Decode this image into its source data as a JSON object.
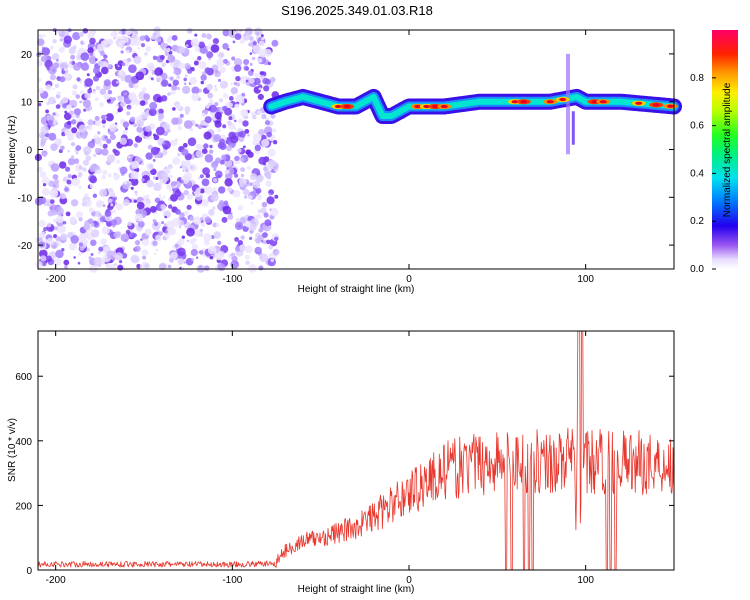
{
  "title": "S196.2025.349.01.03.R18",
  "chart_data": [
    {
      "type": "heatmap",
      "title": "S196.2025.349.01.03.R18",
      "xlabel": "Height of straight line (km)",
      "ylabel": "Frequency (Hz)",
      "xlim": [
        -210,
        150
      ],
      "ylim": [
        -25,
        25
      ],
      "xticks": [
        -200,
        -100,
        0,
        100
      ],
      "yticks": [
        -20,
        -10,
        0,
        10,
        20
      ],
      "noise_region_x": [
        -210,
        -75
      ],
      "colorbar": {
        "label": "Normalized spectral amplitude",
        "range": [
          0,
          1
        ],
        "ticks": [
          0,
          0.2,
          0.4,
          0.6,
          0.8
        ]
      },
      "ridge": {
        "x": [
          -78,
          -70,
          -60,
          -50,
          -40,
          -30,
          -25,
          -20,
          -15,
          -10,
          -5,
          0,
          10,
          20,
          40,
          60,
          80,
          95,
          100,
          120,
          150
        ],
        "y": [
          9,
          10,
          11,
          10,
          9,
          9,
          10,
          11,
          7,
          7,
          8,
          9,
          9,
          9,
          10,
          10,
          10,
          11,
          10,
          10,
          9
        ],
        "peak_x": [
          -40,
          -35,
          5,
          10,
          15,
          20,
          60,
          65,
          80,
          87,
          105,
          110,
          130,
          140,
          148
        ]
      }
    },
    {
      "type": "line",
      "xlabel": "Height of straight line (km)",
      "ylabel": "SNR (10 * v/v)",
      "xlim": [
        -210,
        150
      ],
      "ylim": [
        0,
        740
      ],
      "xticks": [
        -200,
        -100,
        0,
        100
      ],
      "yticks": [
        0,
        200,
        400,
        600
      ],
      "series": [
        {
          "name": "SNR",
          "color": "#e8382e",
          "envelope_x": [
            -210,
            -150,
            -100,
            -76,
            -70,
            -60,
            -50,
            -40,
            -30,
            -20,
            -10,
            0,
            10,
            20,
            30,
            40,
            60,
            80,
            90,
            100,
            120,
            150
          ],
          "envelope_y": [
            18,
            18,
            17,
            20,
            60,
            90,
            100,
            115,
            135,
            165,
            200,
            240,
            275,
            305,
            320,
            330,
            340,
            335,
            340,
            335,
            335,
            330
          ],
          "dropouts_x": [
            55,
            58,
            65,
            68,
            70,
            112,
            114,
            117
          ],
          "spike_x": [
            96,
            98
          ]
        }
      ]
    }
  ]
}
